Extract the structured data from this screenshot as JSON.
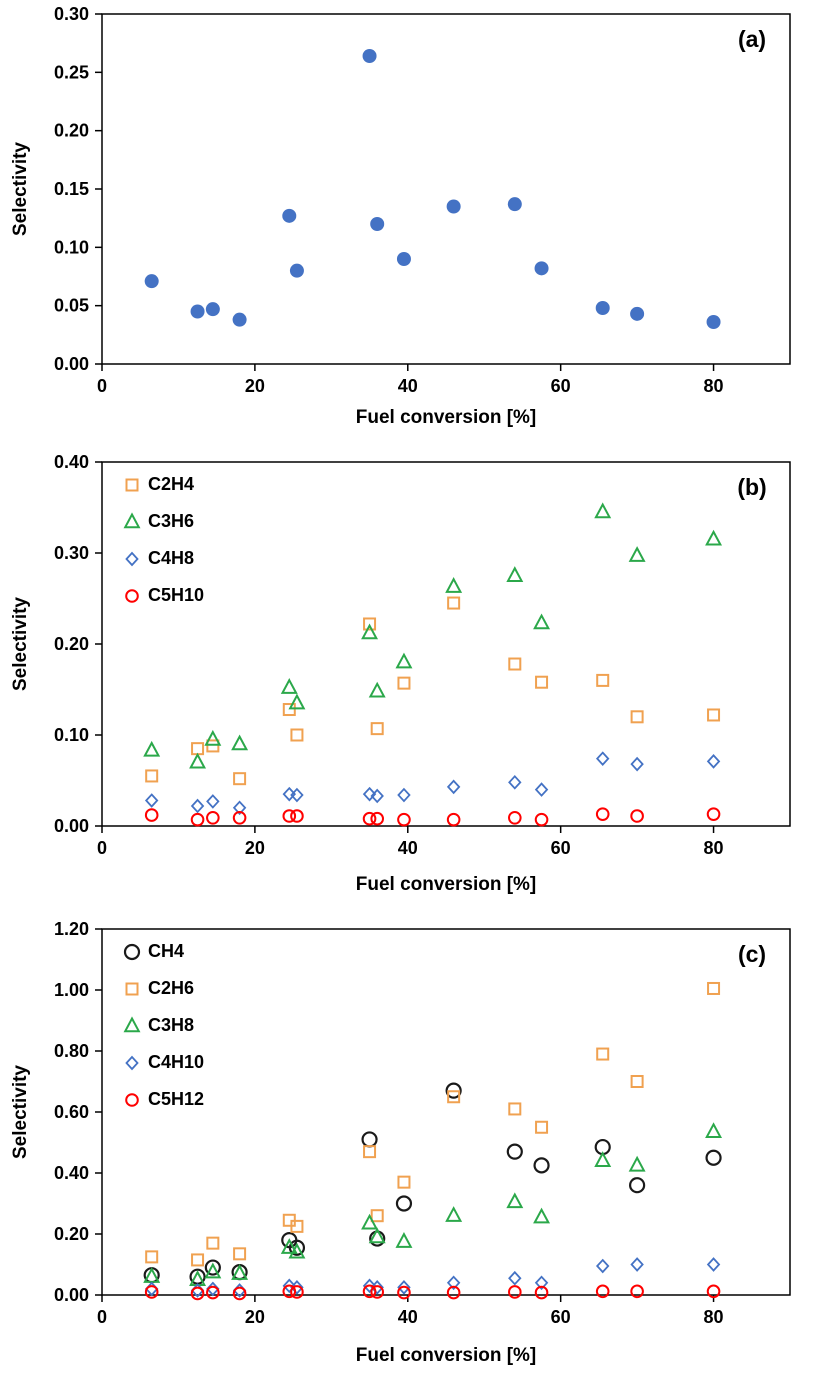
{
  "figure": {
    "xlabel": "Fuel conversion [%]",
    "ylabel": "Selectivity",
    "panel_tags": [
      "(a)",
      "(b)",
      "(c)"
    ]
  },
  "colors": {
    "blue": "#4472C4",
    "orange": "#F0A150",
    "green": "#2BA84A",
    "red": "#FF0000",
    "black": "#1A1A1A"
  },
  "chart_data": [
    {
      "type": "scatter",
      "tag": "(a)",
      "xlabel": "Fuel conversion [%]",
      "ylabel": "Selectivity",
      "xlim": [
        0,
        90
      ],
      "ylim": [
        0,
        0.3
      ],
      "xticks": [
        0,
        20,
        40,
        60,
        80
      ],
      "yticks": [
        0.0,
        0.05,
        0.1,
        0.15,
        0.2,
        0.25,
        0.3
      ],
      "ytick_decimals": 2,
      "legend": false,
      "series": [
        {
          "name": "selectivity",
          "marker": "circle-filled",
          "color": "#4472C4",
          "x": [
            6.5,
            12.5,
            14.5,
            18,
            24.5,
            25.5,
            35,
            36,
            39.5,
            46,
            54,
            57.5,
            65.5,
            70,
            80
          ],
          "y": [
            0.071,
            0.045,
            0.047,
            0.038,
            0.127,
            0.08,
            0.264,
            0.12,
            0.09,
            0.135,
            0.137,
            0.082,
            0.048,
            0.043,
            0.036
          ]
        }
      ]
    },
    {
      "type": "scatter",
      "tag": "(b)",
      "xlabel": "Fuel conversion [%]",
      "ylabel": "Selectivity",
      "xlim": [
        0,
        90
      ],
      "ylim": [
        0,
        0.4
      ],
      "xticks": [
        0,
        20,
        40,
        60,
        80
      ],
      "yticks": [
        0.0,
        0.1,
        0.2,
        0.3,
        0.4
      ],
      "ytick_decimals": 2,
      "legend": true,
      "series": [
        {
          "name": "C2H4",
          "marker": "square-open",
          "color": "#F0A150",
          "x": [
            6.5,
            12.5,
            14.5,
            18,
            24.5,
            25.5,
            35,
            36,
            39.5,
            46,
            54,
            57.5,
            65.5,
            70,
            80
          ],
          "y": [
            0.055,
            0.085,
            0.088,
            0.052,
            0.128,
            0.1,
            0.222,
            0.107,
            0.157,
            0.245,
            0.178,
            0.158,
            0.16,
            0.12,
            0.122
          ]
        },
        {
          "name": "C3H6",
          "marker": "triangle-open",
          "color": "#2BA84A",
          "x": [
            6.5,
            12.5,
            14.5,
            18,
            24.5,
            25.5,
            35,
            36,
            39.5,
            46,
            54,
            57.5,
            65.5,
            70,
            80
          ],
          "y": [
            0.083,
            0.07,
            0.095,
            0.09,
            0.152,
            0.135,
            0.212,
            0.148,
            0.18,
            0.263,
            0.275,
            0.223,
            0.345,
            0.297,
            0.315
          ]
        },
        {
          "name": "C4H8",
          "marker": "diamond-open",
          "color": "#4472C4",
          "x": [
            6.5,
            12.5,
            14.5,
            18,
            24.5,
            25.5,
            35,
            36,
            39.5,
            46,
            54,
            57.5,
            65.5,
            70,
            80
          ],
          "y": [
            0.028,
            0.022,
            0.027,
            0.02,
            0.035,
            0.034,
            0.035,
            0.033,
            0.034,
            0.043,
            0.048,
            0.04,
            0.074,
            0.068,
            0.071
          ]
        },
        {
          "name": "C5H10",
          "marker": "circle-open-small",
          "color": "#FF0000",
          "x": [
            6.5,
            12.5,
            14.5,
            18,
            24.5,
            25.5,
            35,
            36,
            39.5,
            46,
            54,
            57.5,
            65.5,
            70,
            80
          ],
          "y": [
            0.012,
            0.007,
            0.009,
            0.009,
            0.011,
            0.011,
            0.008,
            0.008,
            0.007,
            0.007,
            0.009,
            0.007,
            0.013,
            0.011,
            0.013
          ]
        }
      ]
    },
    {
      "type": "scatter",
      "tag": "(c)",
      "xlabel": "Fuel conversion [%]",
      "ylabel": "Selectivity",
      "xlim": [
        0,
        90
      ],
      "ylim": [
        0,
        1.2
      ],
      "xticks": [
        0,
        20,
        40,
        60,
        80
      ],
      "yticks": [
        0.0,
        0.2,
        0.4,
        0.6,
        0.8,
        1.0,
        1.2
      ],
      "ytick_decimals": 2,
      "legend": true,
      "series": [
        {
          "name": "CH4",
          "marker": "circle-open",
          "color": "#1A1A1A",
          "x": [
            6.5,
            12.5,
            14.5,
            18,
            24.5,
            25.5,
            35,
            36,
            39.5,
            46,
            54,
            57.5,
            65.5,
            70,
            80
          ],
          "y": [
            0.065,
            0.06,
            0.09,
            0.075,
            0.18,
            0.155,
            0.51,
            0.185,
            0.3,
            0.67,
            0.47,
            0.425,
            0.485,
            0.36,
            0.45
          ]
        },
        {
          "name": "C2H6",
          "marker": "square-open",
          "color": "#F0A150",
          "x": [
            6.5,
            12.5,
            14.5,
            18,
            24.5,
            25.5,
            35,
            36,
            39.5,
            46,
            54,
            57.5,
            65.5,
            70,
            80
          ],
          "y": [
            0.125,
            0.115,
            0.17,
            0.135,
            0.245,
            0.225,
            0.47,
            0.26,
            0.37,
            0.65,
            0.61,
            0.55,
            0.79,
            0.7,
            1.005
          ]
        },
        {
          "name": "C3H8",
          "marker": "triangle-open",
          "color": "#2BA84A",
          "x": [
            6.5,
            12.5,
            14.5,
            18,
            24.5,
            25.5,
            35,
            36,
            39.5,
            46,
            54,
            57.5,
            65.5,
            70,
            80
          ],
          "y": [
            0.06,
            0.05,
            0.075,
            0.07,
            0.155,
            0.14,
            0.235,
            0.19,
            0.175,
            0.26,
            0.305,
            0.255,
            0.44,
            0.425,
            0.535
          ]
        },
        {
          "name": "C4H10",
          "marker": "diamond-open",
          "color": "#4472C4",
          "x": [
            6.5,
            12.5,
            14.5,
            18,
            24.5,
            25.5,
            35,
            36,
            39.5,
            46,
            54,
            57.5,
            65.5,
            70,
            80
          ],
          "y": [
            0.02,
            0.015,
            0.02,
            0.015,
            0.03,
            0.025,
            0.03,
            0.025,
            0.025,
            0.04,
            0.055,
            0.04,
            0.095,
            0.1,
            0.1
          ]
        },
        {
          "name": "C5H12",
          "marker": "circle-open-small",
          "color": "#FF0000",
          "x": [
            6.5,
            12.5,
            14.5,
            18,
            24.5,
            25.5,
            35,
            36,
            39.5,
            46,
            54,
            57.5,
            65.5,
            70,
            80
          ],
          "y": [
            0.01,
            0.005,
            0.008,
            0.005,
            0.012,
            0.01,
            0.012,
            0.01,
            0.008,
            0.008,
            0.01,
            0.008,
            0.012,
            0.012,
            0.012
          ]
        }
      ]
    }
  ]
}
